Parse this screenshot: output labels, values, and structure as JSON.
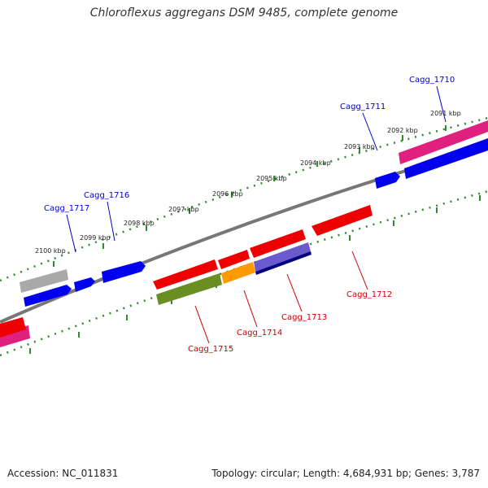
{
  "title": "Chloroflexus aggregans DSM 9485, complete genome",
  "footer": {
    "accession": "Accession: NC_011831",
    "topology": "Topology: circular; Length: 4,684,931 bp; Genes: 3,787"
  },
  "colors": {
    "backbone": "#808080",
    "scale_dots": "#2e8b2e",
    "forward_label": "#0000cc",
    "reverse_label": "#cc0000"
  },
  "kbp_labels": [
    "2091 kbp",
    "2092 kbp",
    "2093 kbp",
    "2094 kbp",
    "2095 kbp",
    "2096 kbp",
    "2097 kbp",
    "2098 kbp",
    "2099 kbp",
    "2100 kbp"
  ],
  "genes": [
    {
      "id": "Cagg_1710",
      "strand": "+",
      "color": "blue"
    },
    {
      "id": "Cagg_1711",
      "strand": "+",
      "color": "blue"
    },
    {
      "id": "Cagg_1712",
      "strand": "-",
      "color": "red"
    },
    {
      "id": "Cagg_1713",
      "strand": "-",
      "color": "red"
    },
    {
      "id": "Cagg_1714",
      "strand": "-",
      "color": "red"
    },
    {
      "id": "Cagg_1715",
      "strand": "-",
      "color": "red"
    },
    {
      "id": "Cagg_1716",
      "strand": "+",
      "color": "blue"
    },
    {
      "id": "Cagg_1717",
      "strand": "+",
      "color": "blue"
    }
  ]
}
